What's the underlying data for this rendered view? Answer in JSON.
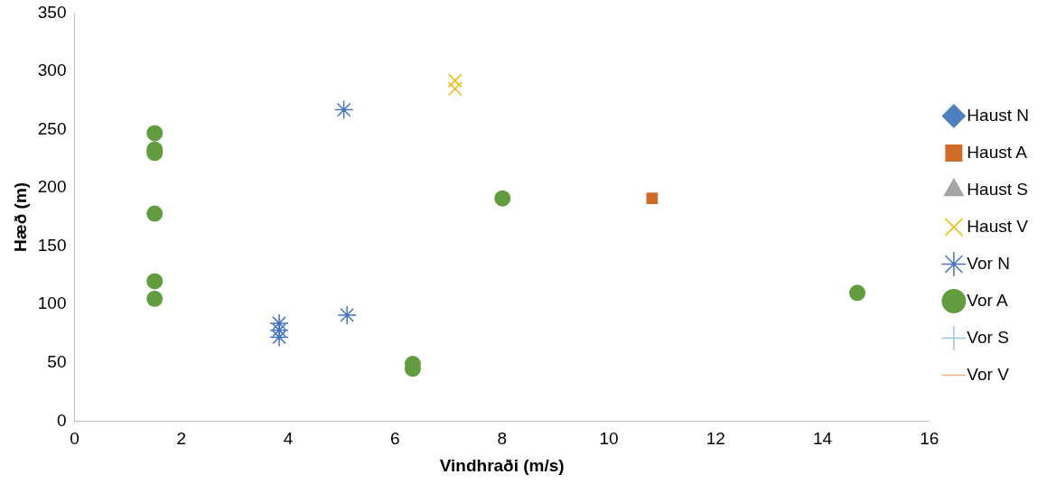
{
  "chart_data": {
    "type": "scatter",
    "xlabel": "Vindhraði (m/s)",
    "ylabel": "Hæð (m)",
    "xlim": [
      0,
      16
    ],
    "xticks": [
      0,
      2,
      4,
      6,
      8,
      10,
      12,
      14,
      16
    ],
    "ylim": [
      0,
      350
    ],
    "yticks": [
      0,
      50,
      100,
      150,
      200,
      250,
      300,
      350
    ],
    "grid": false,
    "legend": "right",
    "series": [
      {
        "name": "Haust N",
        "color": "#4e80bd",
        "marker": "diamond"
      },
      {
        "name": "Haust A",
        "color": "#d06c2a",
        "marker": "square",
        "x": [
          10.81
        ],
        "values": [
          191
        ]
      },
      {
        "name": "Haust S",
        "color": "#a5a5a5",
        "marker": "triangle"
      },
      {
        "name": "Haust V",
        "color": "#f0b400",
        "marker": "x",
        "x": [
          7.12,
          7.12
        ],
        "values": [
          292,
          285
        ]
      },
      {
        "name": "Vor N",
        "color": "#4472c4",
        "marker": "cross",
        "x": [
          5.04,
          5.1,
          3.83,
          3.83,
          3.83
        ],
        "values": [
          267,
          91,
          84,
          78,
          72
        ]
      },
      {
        "name": "Vor A",
        "color": "#629c3f",
        "marker": "circle",
        "x": [
          1.5,
          1.5,
          1.5,
          1.5,
          1.5,
          1.5,
          6.33,
          6.33,
          8.01,
          14.65
        ],
        "values": [
          247,
          233,
          230,
          178,
          120,
          105,
          49,
          45,
          191,
          110
        ]
      },
      {
        "name": "Vor S",
        "color": "#9dc3e6",
        "marker": "plus"
      },
      {
        "name": "Vor V",
        "color": "#f4b183",
        "marker": "dash"
      }
    ]
  }
}
